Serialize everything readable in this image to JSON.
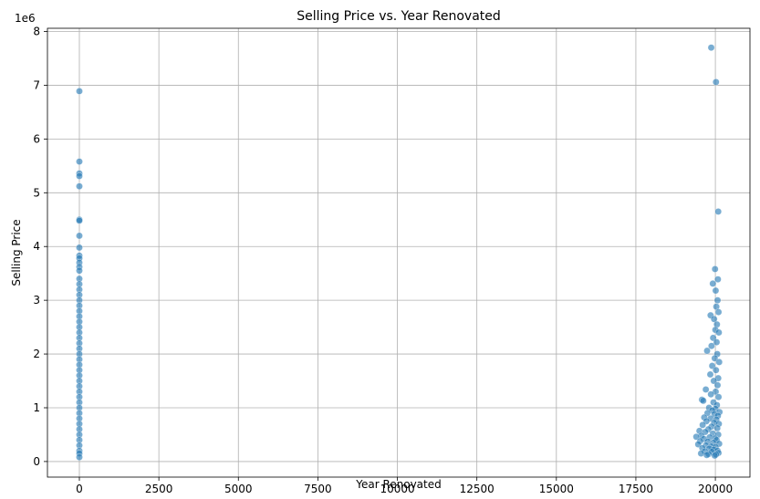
{
  "chart_data": {
    "type": "scatter",
    "title": "Selling Price vs. Year Renovated",
    "xlabel": "Year Renovated",
    "ylabel": "Selling Price",
    "offset_label": "1e6",
    "xlim": [
      -1004,
      21088
    ],
    "ylim": [
      -0.29,
      8.06
    ],
    "x_ticks": [
      0,
      2500,
      5000,
      7500,
      10000,
      12500,
      15000,
      17500,
      20000
    ],
    "x_tick_labels": [
      "0",
      "2500",
      "5000",
      "7500",
      "10000",
      "12500",
      "15000",
      "17500",
      "20000"
    ],
    "y_ticks": [
      0,
      1,
      2,
      3,
      4,
      5,
      6,
      7,
      8
    ],
    "y_tick_labels": [
      "0",
      "1",
      "2",
      "3",
      "4",
      "5",
      "6",
      "7",
      "8"
    ],
    "grid": true,
    "color": "#1f77b4",
    "points": [
      [
        0,
        6.89
      ],
      [
        0,
        5.58
      ],
      [
        0,
        5.36
      ],
      [
        0,
        5.31
      ],
      [
        0,
        5.12
      ],
      [
        0,
        4.5
      ],
      [
        0,
        4.48
      ],
      [
        0,
        4.2
      ],
      [
        0,
        3.98
      ],
      [
        0,
        3.83
      ],
      [
        0,
        3.78
      ],
      [
        0,
        3.7
      ],
      [
        0,
        3.62
      ],
      [
        0,
        3.55
      ],
      [
        0,
        3.4
      ],
      [
        0,
        3.3
      ],
      [
        0,
        3.2
      ],
      [
        0,
        3.1
      ],
      [
        0,
        3.0
      ],
      [
        0,
        2.9
      ],
      [
        0,
        2.8
      ],
      [
        0,
        2.7
      ],
      [
        0,
        2.6
      ],
      [
        0,
        2.5
      ],
      [
        0,
        2.4
      ],
      [
        0,
        2.3
      ],
      [
        0,
        2.2
      ],
      [
        0,
        2.1
      ],
      [
        0,
        2.0
      ],
      [
        0,
        1.9
      ],
      [
        0,
        1.8
      ],
      [
        0,
        1.7
      ],
      [
        0,
        1.6
      ],
      [
        0,
        1.5
      ],
      [
        0,
        1.4
      ],
      [
        0,
        1.3
      ],
      [
        0,
        1.2
      ],
      [
        0,
        1.1
      ],
      [
        0,
        1.0
      ],
      [
        0,
        0.9
      ],
      [
        0,
        0.8
      ],
      [
        0,
        0.7
      ],
      [
        0,
        0.6
      ],
      [
        0,
        0.5
      ],
      [
        0,
        0.4
      ],
      [
        0,
        0.3
      ],
      [
        0,
        0.2
      ],
      [
        0,
        0.15
      ],
      [
        0,
        0.08
      ],
      [
        19870,
        7.7
      ],
      [
        20020,
        7.06
      ],
      [
        20090,
        4.65
      ],
      [
        19990,
        3.58
      ],
      [
        20080,
        3.39
      ],
      [
        19920,
        3.31
      ],
      [
        20010,
        3.18
      ],
      [
        20070,
        3.0
      ],
      [
        20030,
        2.88
      ],
      [
        20100,
        2.78
      ],
      [
        19850,
        2.72
      ],
      [
        19960,
        2.65
      ],
      [
        20050,
        2.55
      ],
      [
        20000,
        2.45
      ],
      [
        20110,
        2.4
      ],
      [
        19930,
        2.3
      ],
      [
        20040,
        2.22
      ],
      [
        19880,
        2.15
      ],
      [
        19740,
        2.06
      ],
      [
        20060,
        2.0
      ],
      [
        19980,
        1.92
      ],
      [
        20120,
        1.85
      ],
      [
        19900,
        1.78
      ],
      [
        20020,
        1.7
      ],
      [
        19840,
        1.62
      ],
      [
        20090,
        1.55
      ],
      [
        19950,
        1.5
      ],
      [
        20070,
        1.42
      ],
      [
        19700,
        1.34
      ],
      [
        20010,
        1.3
      ],
      [
        19860,
        1.25
      ],
      [
        20100,
        1.2
      ],
      [
        19580,
        1.15
      ],
      [
        19620,
        1.13
      ],
      [
        19940,
        1.1
      ],
      [
        20050,
        1.05
      ],
      [
        19800,
        1.0
      ],
      [
        20000,
        0.98
      ],
      [
        19900,
        0.95
      ],
      [
        20130,
        0.92
      ],
      [
        19750,
        0.9
      ],
      [
        19970,
        0.88
      ],
      [
        20080,
        0.85
      ],
      [
        19650,
        0.82
      ],
      [
        19850,
        0.8
      ],
      [
        20030,
        0.78
      ],
      [
        19720,
        0.75
      ],
      [
        19960,
        0.72
      ],
      [
        20110,
        0.7
      ],
      [
        19600,
        0.68
      ],
      [
        19880,
        0.65
      ],
      [
        20060,
        0.62
      ],
      [
        19780,
        0.6
      ],
      [
        19500,
        0.57
      ],
      [
        19680,
        0.55
      ],
      [
        19920,
        0.52
      ],
      [
        20090,
        0.5
      ],
      [
        19560,
        0.48
      ],
      [
        19400,
        0.46
      ],
      [
        19820,
        0.45
      ],
      [
        19990,
        0.43
      ],
      [
        19640,
        0.42
      ],
      [
        20040,
        0.4
      ],
      [
        19520,
        0.38
      ],
      [
        19760,
        0.37
      ],
      [
        19930,
        0.35
      ],
      [
        20120,
        0.33
      ],
      [
        19460,
        0.32
      ],
      [
        19700,
        0.3
      ],
      [
        19870,
        0.28
      ],
      [
        20010,
        0.27
      ],
      [
        19590,
        0.25
      ],
      [
        19810,
        0.24
      ],
      [
        19950,
        0.22
      ],
      [
        20070,
        0.2
      ],
      [
        19670,
        0.19
      ],
      [
        19890,
        0.18
      ],
      [
        20100,
        0.16
      ],
      [
        19550,
        0.15
      ],
      [
        19790,
        0.14
      ],
      [
        20020,
        0.13
      ],
      [
        19730,
        0.12
      ],
      [
        19980,
        0.11
      ]
    ]
  }
}
